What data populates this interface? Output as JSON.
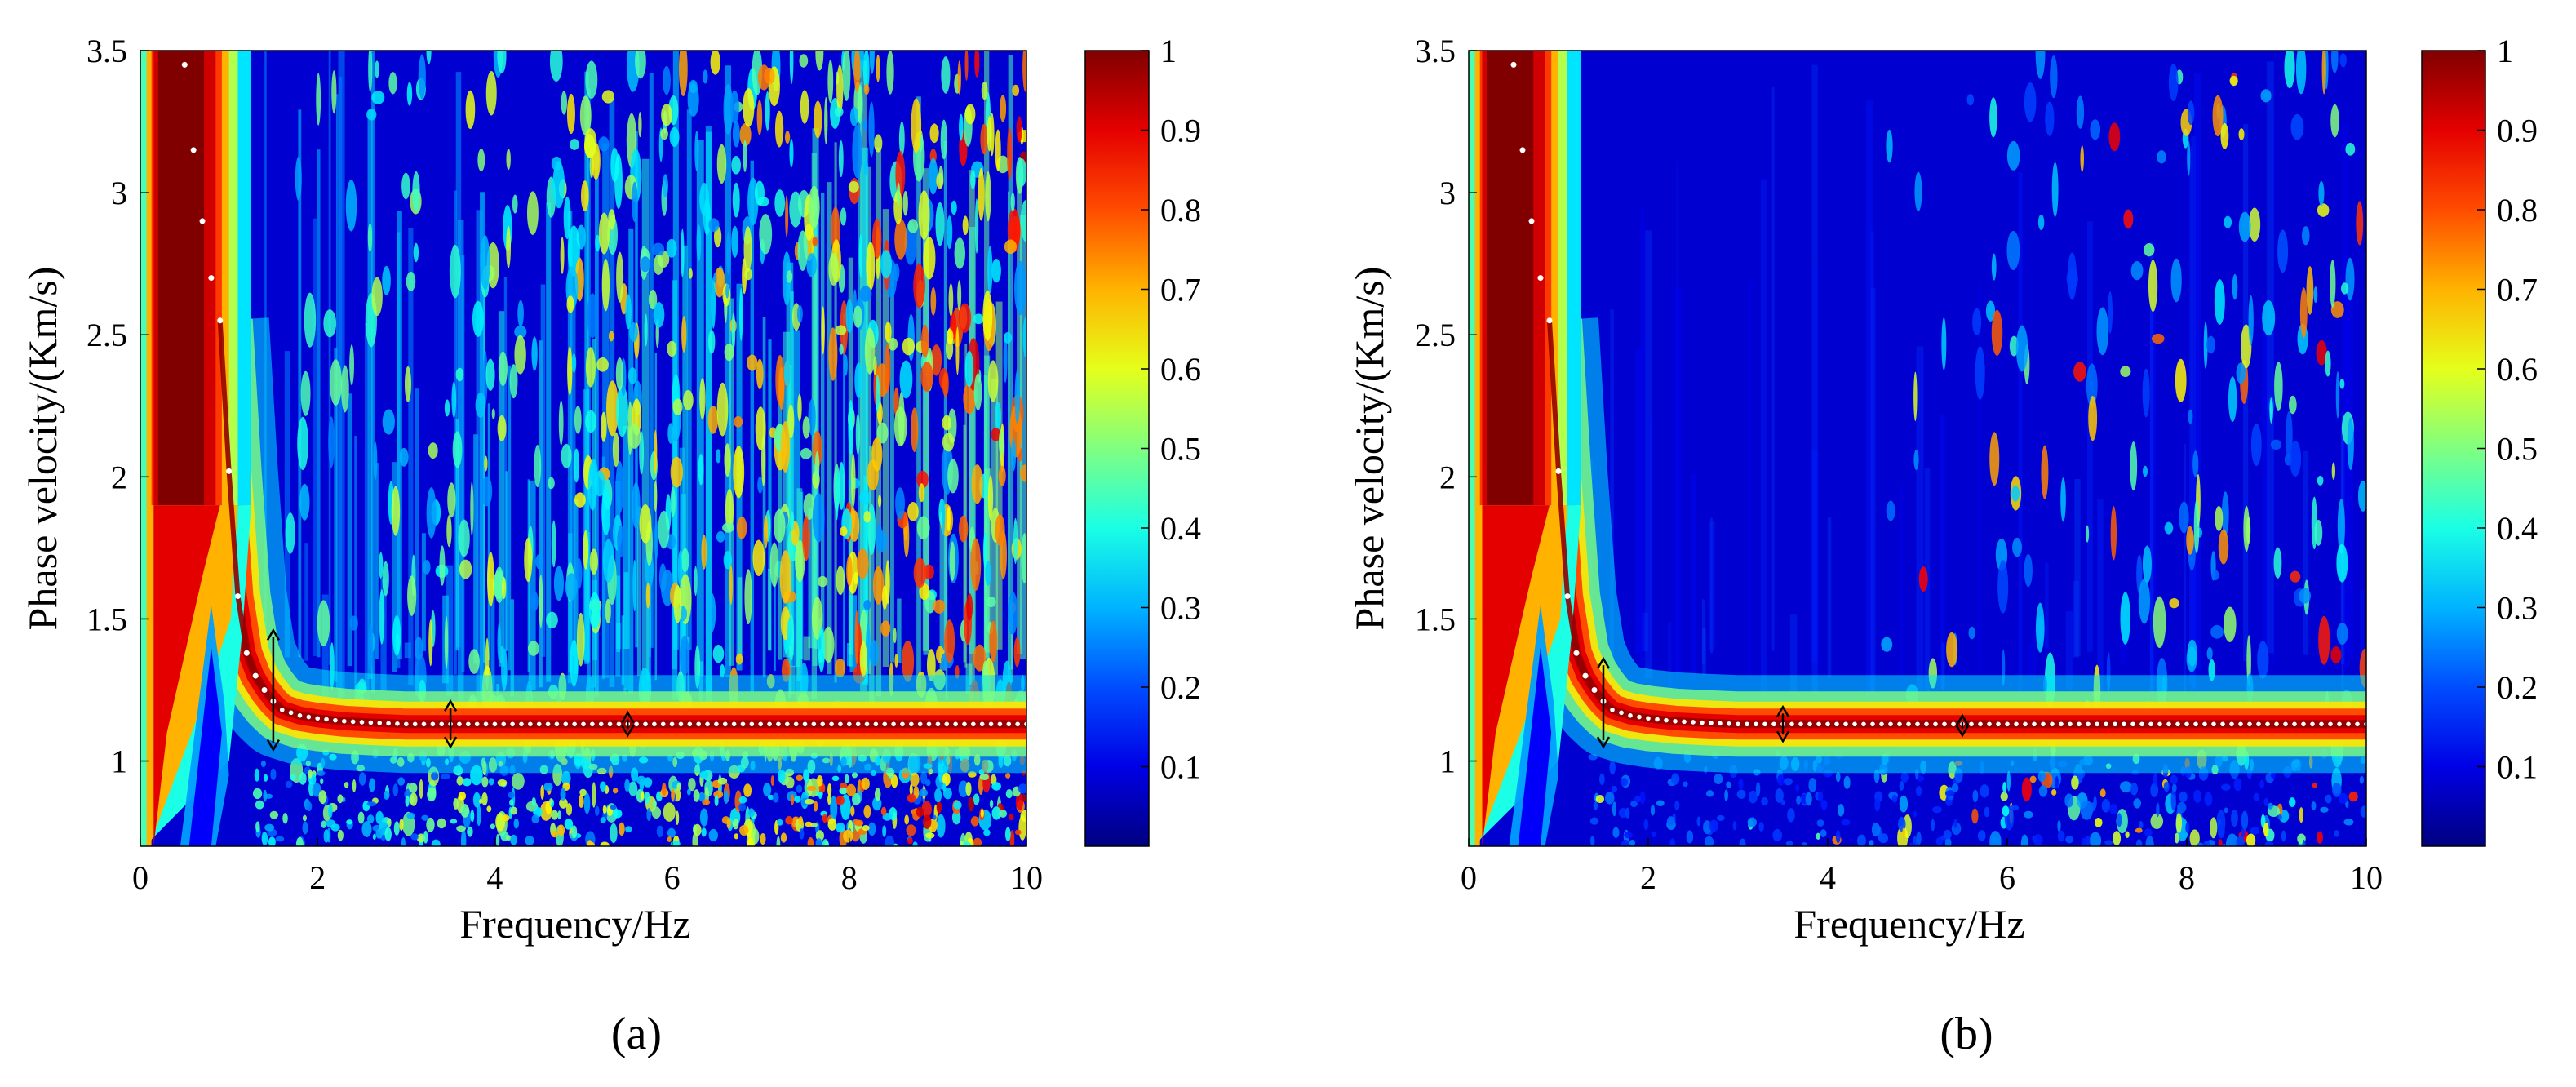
{
  "figure": {
    "panels": [
      {
        "label": "(a)",
        "noise_level": "high"
      },
      {
        "label": "(b)",
        "noise_level": "low"
      }
    ]
  },
  "chart_data": [
    {
      "type": "heatmap",
      "panel_label": "(a)",
      "title": "",
      "xlabel": "Frequency/Hz",
      "ylabel": "Phase velocity/(Km/s)",
      "xlim": [
        0,
        10
      ],
      "ylim": [
        0.7,
        3.5
      ],
      "xticks": [
        "0",
        "2",
        "4",
        "6",
        "8",
        "10"
      ],
      "yticks": [
        "1",
        "1.5",
        "2",
        "2.5",
        "3",
        "3.5"
      ],
      "colorbar": {
        "range": [
          0,
          1
        ],
        "ticks": [
          "0.1",
          "0.2",
          "0.3",
          "0.4",
          "0.5",
          "0.6",
          "0.7",
          "0.8",
          "0.9",
          "1"
        ],
        "colormap": "jet"
      },
      "dispersion_curve": {
        "frequency": [
          0.5,
          0.6,
          0.7,
          0.8,
          0.9,
          1.0,
          1.1,
          1.2,
          1.3,
          1.4,
          1.5,
          1.6,
          1.8,
          2.0,
          2.3,
          2.6,
          3.0,
          3.5,
          4.0,
          5.0,
          6.0,
          7.0,
          8.0,
          9.0,
          10.0
        ],
        "phase_velocity": [
          3.45,
          3.15,
          2.9,
          2.7,
          2.55,
          2.02,
          1.58,
          1.38,
          1.3,
          1.25,
          1.21,
          1.18,
          1.16,
          1.15,
          1.14,
          1.135,
          1.13,
          1.13,
          1.13,
          1.13,
          1.13,
          1.13,
          1.13,
          1.13,
          1.13
        ]
      },
      "error_bars": [
        {
          "frequency": 1.5,
          "low": 1.04,
          "high": 1.46
        },
        {
          "frequency": 3.5,
          "low": 1.05,
          "high": 1.21
        },
        {
          "frequency": 5.5,
          "low": 1.09,
          "high": 1.17
        }
      ]
    },
    {
      "type": "heatmap",
      "panel_label": "(b)",
      "title": "",
      "xlabel": "Frequency/Hz",
      "ylabel": "Phase velocity/(Km/s)",
      "xlim": [
        0,
        10
      ],
      "ylim": [
        0.7,
        3.5
      ],
      "xticks": [
        "0",
        "2",
        "4",
        "6",
        "8",
        "10"
      ],
      "yticks": [
        "1",
        "1.5",
        "2",
        "2.5",
        "3",
        "3.5"
      ],
      "colorbar": {
        "range": [
          0,
          1
        ],
        "ticks": [
          "0.1",
          "0.2",
          "0.3",
          "0.4",
          "0.5",
          "0.6",
          "0.7",
          "0.8",
          "0.9",
          "1"
        ],
        "colormap": "jet"
      },
      "dispersion_curve": {
        "frequency": [
          0.5,
          0.6,
          0.7,
          0.8,
          0.9,
          1.0,
          1.1,
          1.2,
          1.3,
          1.4,
          1.5,
          1.6,
          1.8,
          2.0,
          2.3,
          2.6,
          3.0,
          3.5,
          4.0,
          5.0,
          6.0,
          7.0,
          8.0,
          9.0,
          10.0
        ],
        "phase_velocity": [
          3.45,
          3.15,
          2.9,
          2.7,
          2.55,
          2.02,
          1.58,
          1.38,
          1.3,
          1.25,
          1.21,
          1.18,
          1.16,
          1.15,
          1.14,
          1.135,
          1.13,
          1.13,
          1.13,
          1.13,
          1.13,
          1.13,
          1.13,
          1.13,
          1.13
        ]
      },
      "error_bars": [
        {
          "frequency": 1.5,
          "low": 1.05,
          "high": 1.36
        },
        {
          "frequency": 3.5,
          "low": 1.07,
          "high": 1.19
        },
        {
          "frequency": 5.5,
          "low": 1.09,
          "high": 1.16
        }
      ]
    }
  ]
}
